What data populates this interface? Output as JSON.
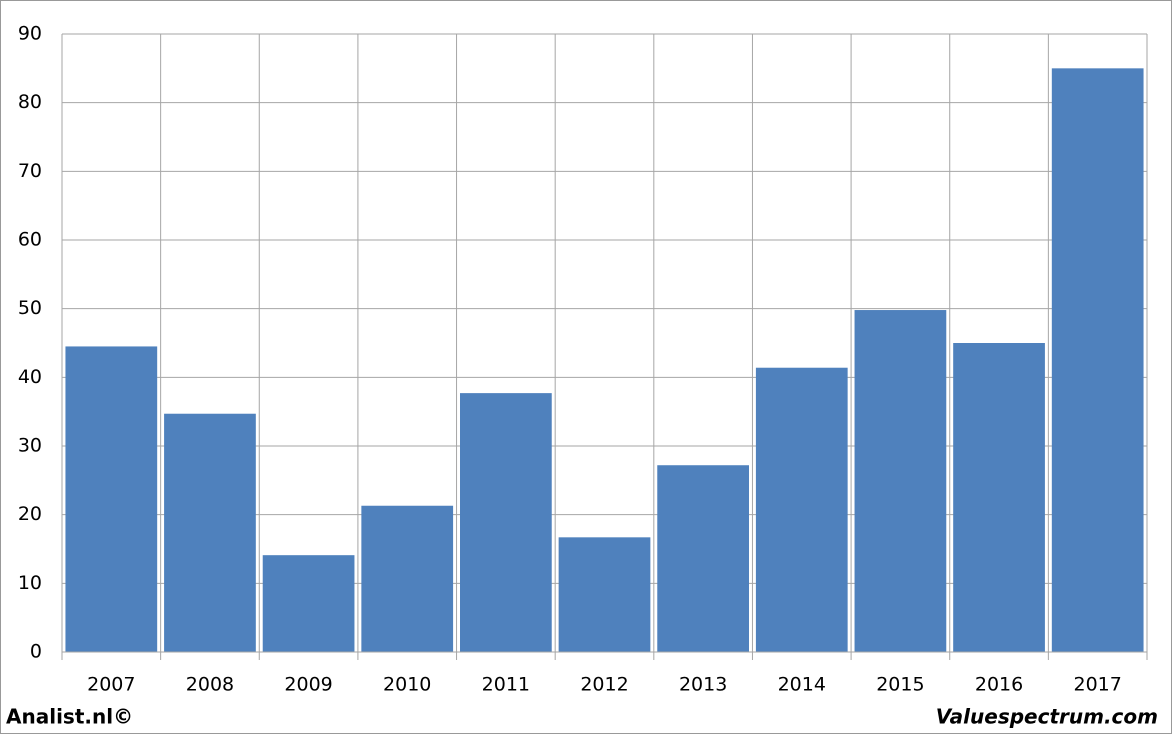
{
  "chart_data": {
    "type": "bar",
    "categories": [
      "2007",
      "2008",
      "2009",
      "2010",
      "2011",
      "2012",
      "2013",
      "2014",
      "2015",
      "2016",
      "2017"
    ],
    "values": [
      44.5,
      34.7,
      14.1,
      21.3,
      37.7,
      16.7,
      27.2,
      41.4,
      49.8,
      45,
      85
    ],
    "color": "#4f81bd",
    "ylim": [
      0,
      90
    ],
    "yticks": [
      0,
      10,
      20,
      30,
      40,
      50,
      60,
      70,
      80,
      90
    ],
    "grid": true,
    "annotations": [
      "Analist.nl©",
      "Valuespectrum.com"
    ]
  }
}
